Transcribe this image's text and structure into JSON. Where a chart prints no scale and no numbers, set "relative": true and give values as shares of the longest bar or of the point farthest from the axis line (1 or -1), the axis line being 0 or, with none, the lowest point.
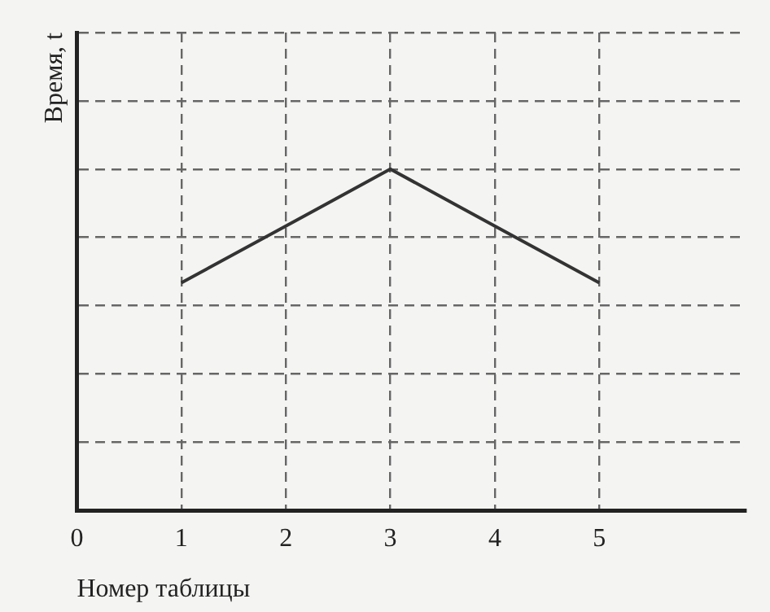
{
  "chart_data": {
    "type": "line",
    "xlabel": "Номер таблицы",
    "ylabel": "Время, t",
    "x": [
      1,
      2,
      3,
      4,
      5
    ],
    "values": [
      0.667,
      0.833,
      1,
      0.833,
      0.667
    ],
    "color": "#333333",
    "relative": true,
    "xlim": [
      0,
      6.4
    ],
    "xticks": [
      0,
      1,
      2,
      3,
      4,
      5
    ],
    "grid": true,
    "marker": "none",
    "line_style": "solid",
    "legend": false
  }
}
